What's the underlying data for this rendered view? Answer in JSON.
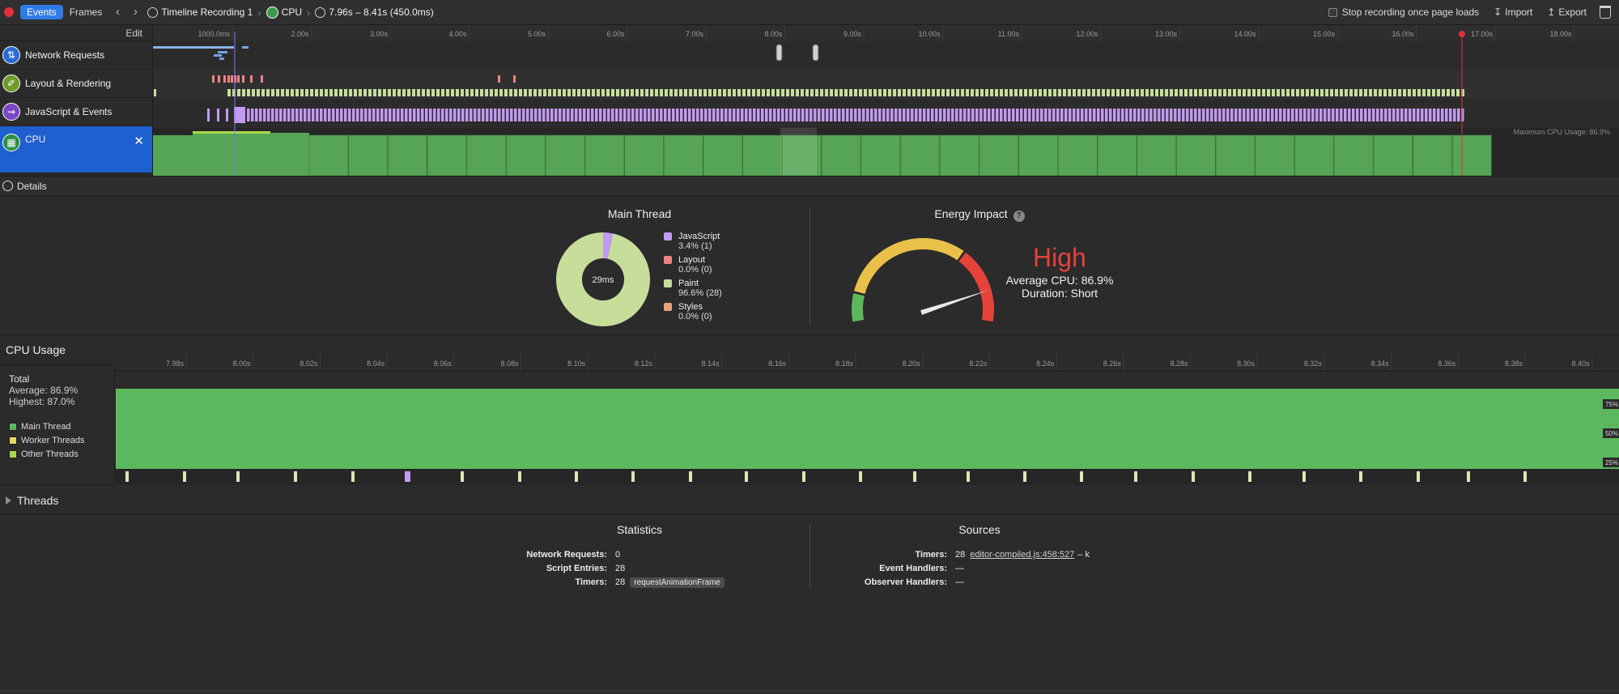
{
  "toolbar": {
    "tabs": [
      "Events",
      "Frames"
    ],
    "recording": "Timeline Recording 1",
    "instrument": "CPU",
    "range": "7.96s – 8.41s (450.0ms)",
    "stop_label": "Stop recording once page loads",
    "import_label": "Import",
    "export_label": "Export"
  },
  "overview": {
    "edit_label": "Edit",
    "ruler_ticks": [
      "1000.0ms",
      "2.00s",
      "3.00s",
      "4.00s",
      "5.00s",
      "6.00s",
      "7.00s",
      "8.00s",
      "9.00s",
      "10.00s",
      "11.00s",
      "12.00s",
      "13.00s",
      "14.00s",
      "15.00s",
      "16.00s",
      "17.00s",
      "18.00s"
    ],
    "rows": [
      {
        "label": "Network Requests",
        "icon": "network-icon"
      },
      {
        "label": "Layout & Rendering",
        "icon": "brush-icon"
      },
      {
        "label": "JavaScript & Events",
        "icon": "script-icon"
      },
      {
        "label": "CPU",
        "icon": "cpu-icon"
      }
    ],
    "max_cpu_label": "Maximum CPU Usage: 86.9%"
  },
  "details_label": "Details",
  "main_thread": {
    "title": "Main Thread",
    "center_label": "29ms",
    "legend": [
      {
        "name": "JavaScript",
        "value": "3.4% (1)",
        "color": "#c39af2"
      },
      {
        "name": "Layout",
        "value": "0.0% (0)",
        "color": "#f08383"
      },
      {
        "name": "Paint",
        "value": "96.6% (28)",
        "color": "#c6de9a"
      },
      {
        "name": "Styles",
        "value": "0.0% (0)",
        "color": "#e8a17e"
      }
    ]
  },
  "energy": {
    "title": "Energy Impact",
    "help": "?",
    "level": "High",
    "average": "Average CPU: 86.9%",
    "duration": "Duration: Short",
    "gauge_value": 0.869
  },
  "cpu_usage": {
    "title": "CPU Usage",
    "total_label": "Total",
    "average": "Average: 86.9%",
    "highest": "Highest: 87.0%",
    "legend": [
      "Main Thread",
      "Worker Threads",
      "Other Threads"
    ],
    "ticks": [
      "7.98s",
      "8.00s",
      "8.02s",
      "8.04s",
      "8.06s",
      "8.08s",
      "8.10s",
      "8.12s",
      "8.14s",
      "8.16s",
      "8.18s",
      "8.20s",
      "8.22s",
      "8.24s",
      "8.26s",
      "8.28s",
      "8.30s",
      "8.32s",
      "8.34s",
      "8.36s",
      "8.38s",
      "8.40s"
    ],
    "y_labels": [
      "75%",
      "50%",
      "25%"
    ]
  },
  "threads_label": "Threads",
  "statistics": {
    "title": "Statistics",
    "rows": [
      {
        "key": "Network Requests:",
        "value": "0"
      },
      {
        "key": "Script Entries:",
        "value": "28"
      },
      {
        "key": "Timers:",
        "value": "28",
        "tag": "requestAnimationFrame"
      }
    ]
  },
  "sources": {
    "title": "Sources",
    "rows": [
      {
        "key": "Timers:",
        "value": "28",
        "link": "editor-compiled.js:458:527",
        "suffix": "– k"
      },
      {
        "key": "Event Handlers:",
        "value": "—"
      },
      {
        "key": "Observer Handlers:",
        "value": "—"
      }
    ]
  },
  "colors": {
    "accent": "#1f5fcf",
    "cpu_green": "#5cb85c",
    "js_purple": "#c39af2",
    "layout_red": "#f08383",
    "paint_green": "#c6de9a"
  }
}
